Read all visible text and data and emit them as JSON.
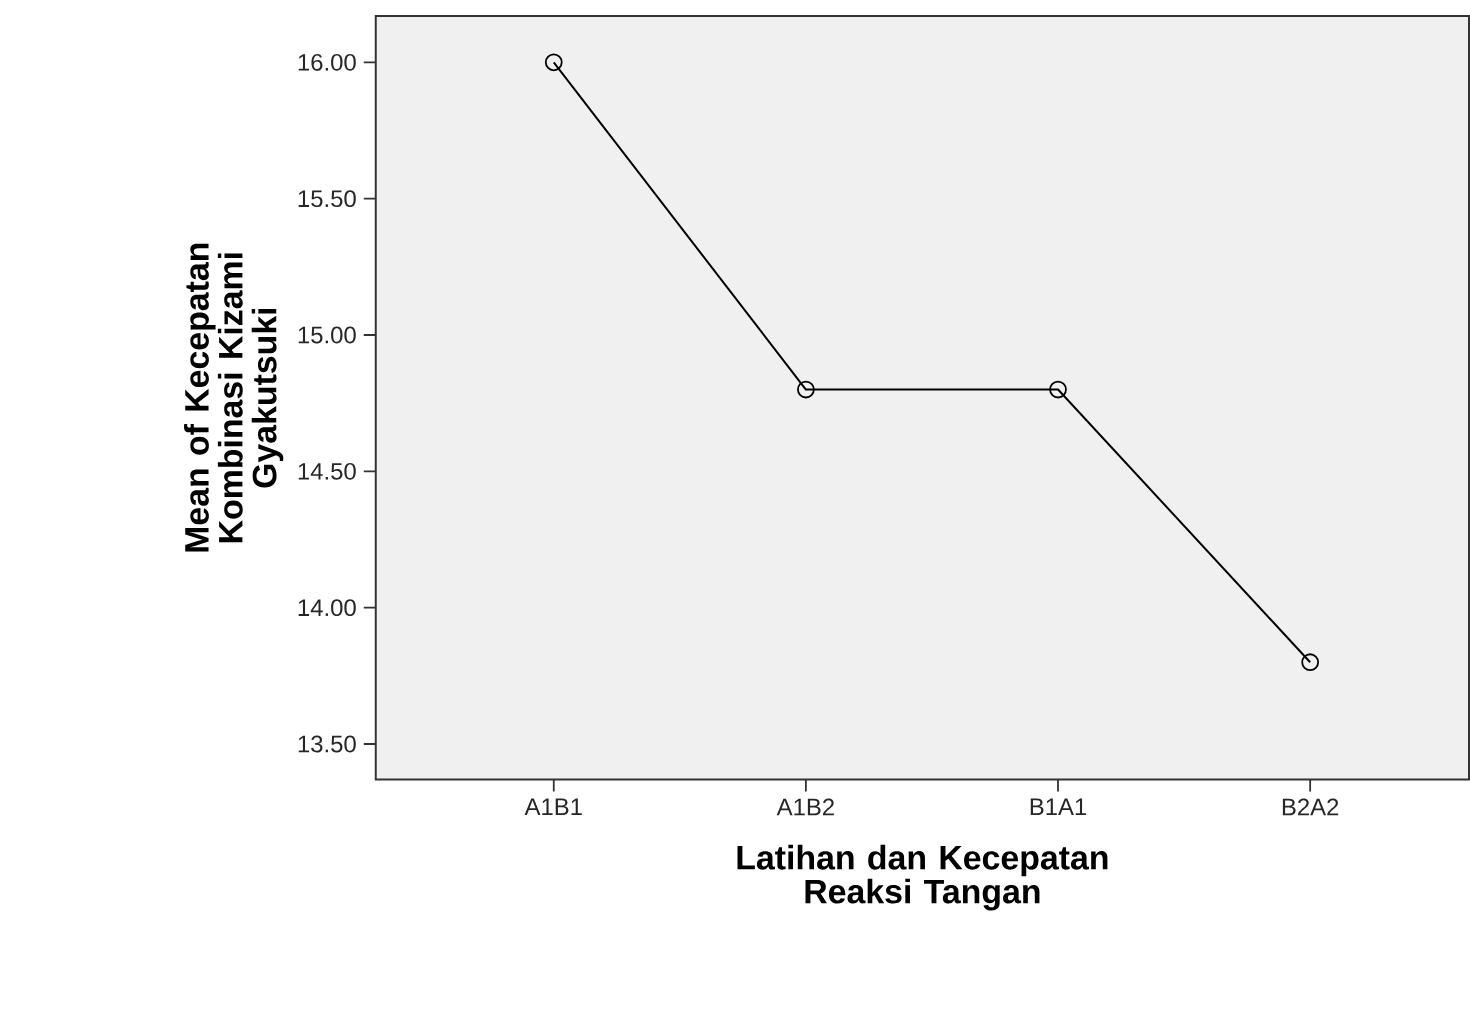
{
  "chart_data": {
    "type": "line",
    "xlabel": "Latihan dan Kecepatan Reaksi Tangan",
    "ylabel": "Mean of Kecepatan Kombinasi Kizami Gyakutsuki",
    "categories": [
      "A1B1",
      "A1B2",
      "B1A1",
      "B2A2"
    ],
    "series": [
      {
        "color": "#000000",
        "values": [
          16.0,
          14.8,
          14.8,
          13.8
        ]
      }
    ],
    "ylim": [
      13.37,
      16.17
    ],
    "yticks": [
      {
        "value": 13.5,
        "label": "13.50"
      },
      {
        "value": 14.0,
        "label": "14.00"
      },
      {
        "value": 14.5,
        "label": "14.50"
      },
      {
        "value": 15.0,
        "label": "15.00"
      },
      {
        "value": 15.5,
        "label": "15.50"
      },
      {
        "value": 16.0,
        "label": "16.00"
      }
    ],
    "marker": "circle",
    "line_style": "solid",
    "grid": false
  }
}
